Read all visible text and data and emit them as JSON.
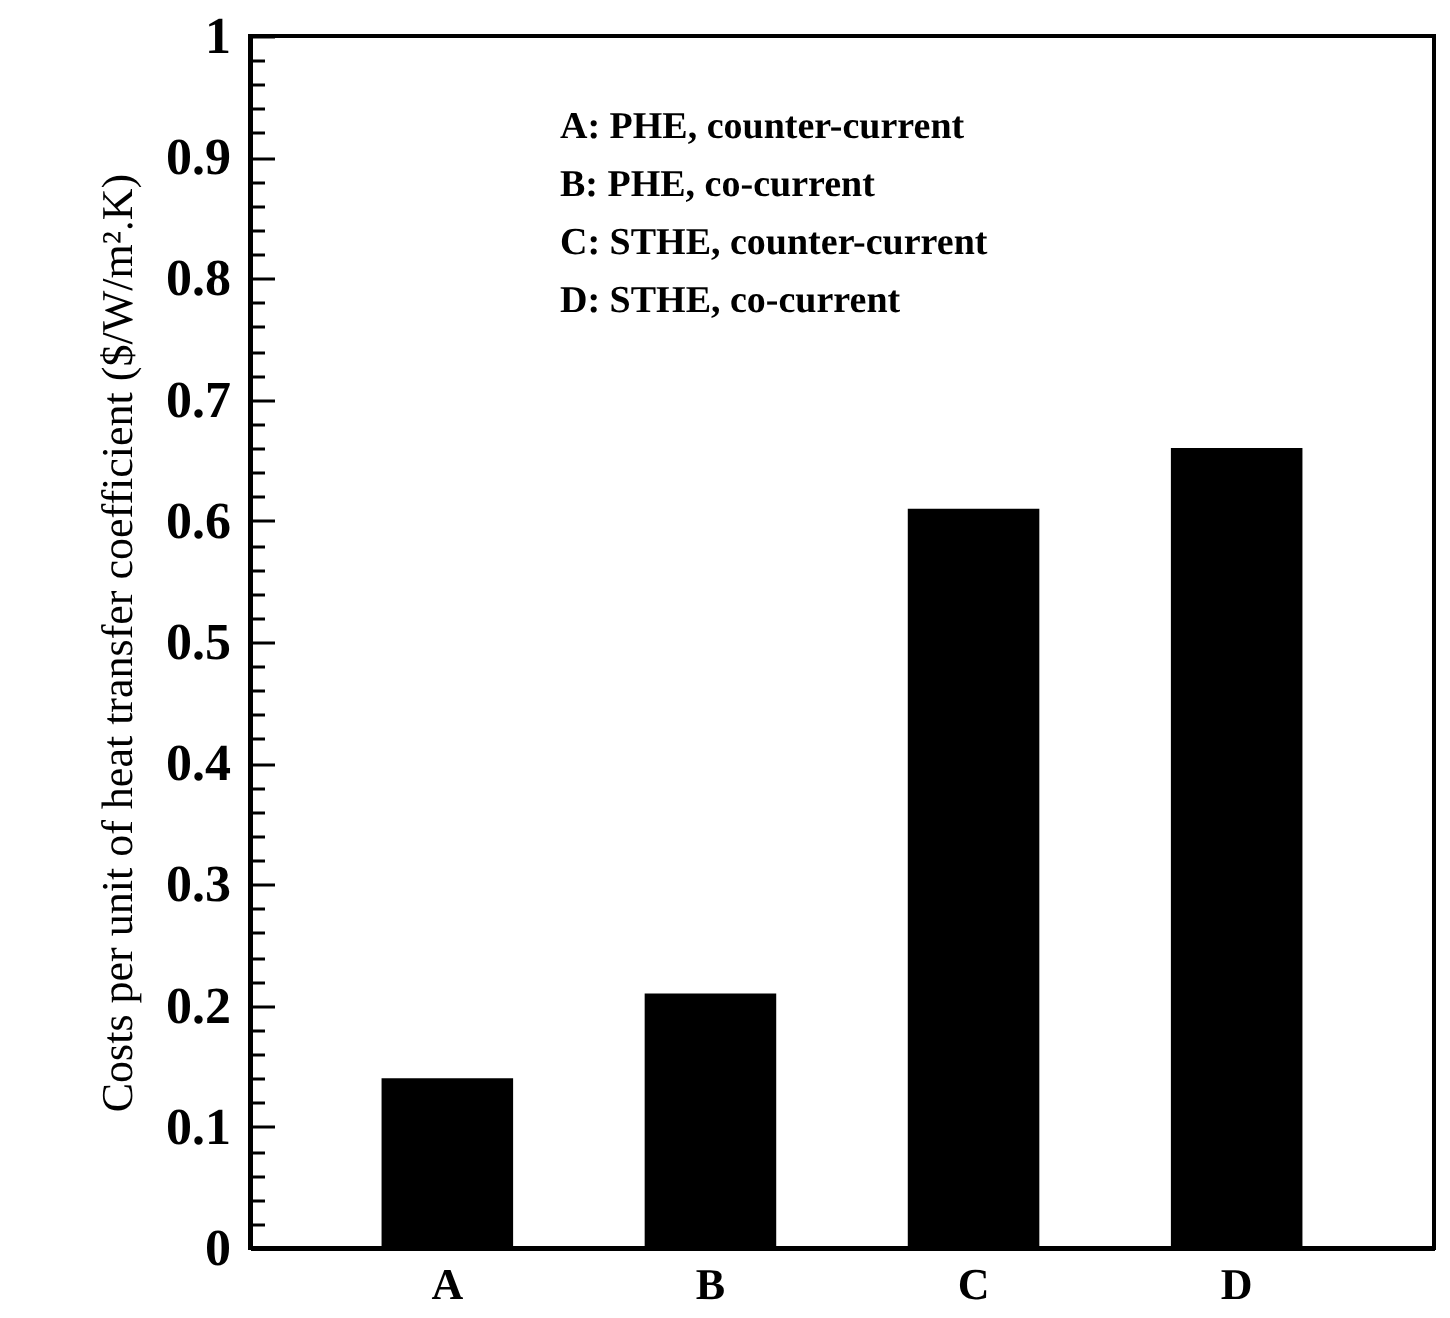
{
  "chart_data": {
    "type": "bar",
    "ylabel": "Costs per unit of heat transfer coefficient ($/W/m².K)",
    "categories": [
      "A",
      "B",
      "C",
      "D"
    ],
    "values": [
      0.14,
      0.21,
      0.61,
      0.66
    ],
    "color": "#000000",
    "ylim": [
      0,
      1
    ],
    "yticks": [
      0,
      {
        "value": 0.02,
        "label": null
      },
      {
        "value": 0.04,
        "label": null
      },
      {
        "value": 0.06,
        "label": null
      },
      {
        "value": 0.08,
        "label": null
      },
      0.1,
      {
        "value": 0.12,
        "label": null
      },
      {
        "value": 0.14,
        "label": null
      },
      {
        "value": 0.16,
        "label": null
      },
      {
        "value": 0.18,
        "label": null
      },
      0.2,
      {
        "value": 0.22,
        "label": null
      },
      {
        "value": 0.24,
        "label": null
      },
      {
        "value": 0.26,
        "label": null
      },
      {
        "value": 0.28,
        "label": null
      },
      0.3,
      {
        "value": 0.32,
        "label": null
      },
      {
        "value": 0.34,
        "label": null
      },
      {
        "value": 0.36,
        "label": null
      },
      {
        "value": 0.38,
        "label": null
      },
      0.4,
      {
        "value": 0.42,
        "label": null
      },
      {
        "value": 0.44,
        "label": null
      },
      {
        "value": 0.46,
        "label": null
      },
      {
        "value": 0.48,
        "label": null
      },
      0.5,
      {
        "value": 0.52,
        "label": null
      },
      {
        "value": 0.54,
        "label": null
      },
      {
        "value": 0.56,
        "label": null
      },
      {
        "value": 0.58,
        "label": null
      },
      0.6,
      {
        "value": 0.62,
        "label": null
      },
      {
        "value": 0.64,
        "label": null
      },
      {
        "value": 0.66,
        "label": null
      },
      {
        "value": 0.68,
        "label": null
      },
      0.7,
      {
        "value": 0.72,
        "label": null
      },
      {
        "value": 0.74,
        "label": null
      },
      {
        "value": 0.76,
        "label": null
      },
      {
        "value": 0.78,
        "label": null
      },
      0.8,
      {
        "value": 0.82,
        "label": null
      },
      {
        "value": 0.84,
        "label": null
      },
      {
        "value": 0.86,
        "label": null
      },
      {
        "value": 0.88,
        "label": null
      },
      0.9,
      {
        "value": 0.92,
        "label": null
      },
      {
        "value": 0.94,
        "label": null
      },
      {
        "value": 0.96,
        "label": null
      },
      {
        "value": 0.98,
        "label": null
      },
      1
    ],
    "annotations": [
      "A:   PHE, counter-current",
      "B:   PHE, co-current",
      "C:   STHE, counter-current",
      "D:   STHE, co-current"
    ],
    "grid": false
  }
}
